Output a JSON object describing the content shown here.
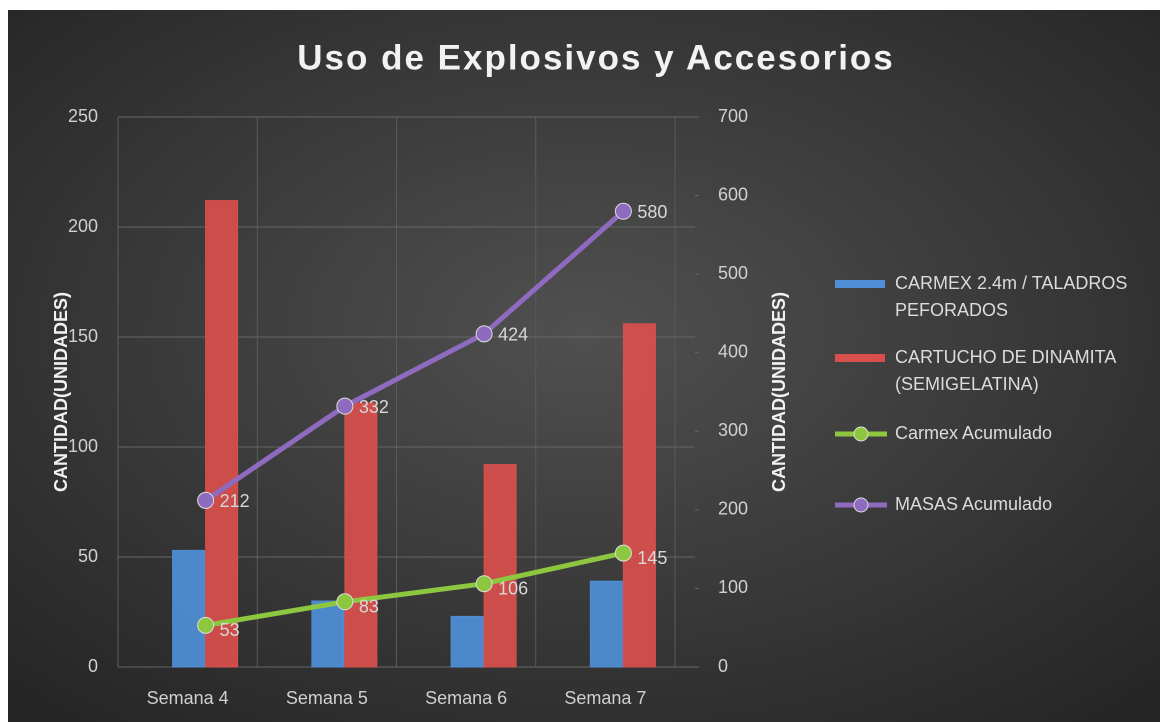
{
  "chart_data": {
    "type": "bar",
    "title": "Uso de Explosivos y Accesorios",
    "categories": [
      "Semana 4",
      "Semana 5",
      "Semana 6",
      "Semana 7"
    ],
    "series": [
      {
        "name": "CARMEX 2.4m / TALADROS PEFORADOS",
        "type": "bar",
        "color": "#4f8fd8",
        "values": [
          53,
          30,
          23,
          39
        ]
      },
      {
        "name": "CARTUCHO DE DINAMITA (SEMIGELATINA)",
        "type": "bar",
        "color": "#d94f4c",
        "values": [
          212,
          120,
          92,
          156
        ]
      },
      {
        "name": "Carmex Acumulado",
        "type": "line",
        "axis": "y2",
        "color": "#8dc63f",
        "values": [
          53,
          83,
          106,
          145
        ]
      },
      {
        "name": "MASAS Acumulado",
        "type": "line",
        "axis": "y2",
        "color": "#8e6bbf",
        "values": [
          212,
          332,
          424,
          580
        ]
      }
    ],
    "ylabel": "CANTIDAD(UNIDADES)",
    "y2label": "CANTIDAD(UNIDADES)",
    "ylim": [
      0,
      250
    ],
    "yticks": [
      0,
      50,
      100,
      150,
      200,
      250
    ],
    "y2lim": [
      0,
      700
    ],
    "y2ticks": [
      0,
      100,
      200,
      300,
      400,
      500,
      600,
      700
    ],
    "grid": true,
    "legend": "right"
  }
}
